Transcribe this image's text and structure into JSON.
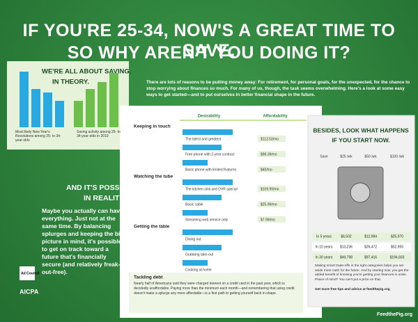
{
  "header": {
    "line1": "IF YOU'RE 25-34, NOW'S A GREAT TIME TO SAVE.",
    "line2": "SO WHY AREN'T YOU DOING IT?"
  },
  "intro": "There are lots of reasons to be putting money away: For retirement, for personal goals, for the unexpected, for the chance to stop worrying about finances so much. For many of us, though, the task seems overwhelming. Here's a look at some easy ways to get started—and to put ourselves in better financial shape in the future.",
  "saving_chart": {
    "type": "bar",
    "title": "WE'RE ALL ABOUT SAVING.",
    "subtitle": "IN THEORY.",
    "series": [
      {
        "name": "Most likely New Year's Resolutions among 25- to 34-year-olds",
        "color": "#29a9e0",
        "values": [
          80,
          55,
          50,
          38
        ]
      },
      {
        "name": "Saving activity among 25- to 34-year-olds in 2010",
        "color": "#6cbf4a",
        "values": [
          38,
          55,
          65,
          78
        ]
      }
    ]
  },
  "reality": {
    "title": "AND IT'S POSSIBLE.",
    "subtitle": "IN REALITY.",
    "text": "Maybe you actually can have everything. Just not at the same time. By balancing splurges and keeping the big picture in mind, it's possible to get on track toward a future that's financially secure (and relatively freak-out-free)."
  },
  "tradeoffs": {
    "columns": [
      "Desirability",
      "Affordability"
    ],
    "sections": [
      {
        "title": "Keeping in touch",
        "options": [
          {
            "label": "The latest and greatest",
            "desirability": 90,
            "cost": "$113.53/mo"
          },
          {
            "label": "Free phone with 2-year contract",
            "desirability": 70,
            "cost": "$98.39/mo"
          },
          {
            "label": "Basic phone with limited features",
            "desirability": 45,
            "cost": "$40/mo"
          }
        ]
      },
      {
        "title": "Watching the tube",
        "options": [
          {
            "label": "The kitchen sink and DVR special",
            "desirability": 90,
            "cost": "$109.99/mo"
          },
          {
            "label": "Basic cable",
            "desirability": 70,
            "cost": "$25.99/mo"
          },
          {
            "label": "Streaming web service only",
            "desirability": 45,
            "cost": "$7.99/mo"
          }
        ]
      },
      {
        "title": "Getting the table",
        "options": [
          {
            "label": "Dining out",
            "desirability": 90
          },
          {
            "label": "Grabbing take-out",
            "desirability": 70
          },
          {
            "label": "Cooking at home",
            "desirability": 45
          }
        ]
      }
    ],
    "debt": {
      "title": "Tackling debt",
      "text": "Nearly half of Americans said they were charged interest on a credit card in the past year, which is decidedly unaffordable. Paying more than the minimum each month—and remembering that using credit doesn't make a splurge any more affordable—is a first path to getting yourself back in shape."
    }
  },
  "savings": {
    "title": "BESIDES, LOOK WHAT HAPPENS",
    "subtitle": "IF YOU START NOW.",
    "header": [
      "Save",
      "$25 /wk",
      "$50 /wk",
      "$100 /wk"
    ],
    "rows": [
      [
        "In 5 years",
        "$6,502",
        "$12,984",
        "$25,970"
      ],
      [
        "In 10 years",
        "$13,236",
        "$26,472",
        "$52,955"
      ],
      [
        "In 30 years",
        "$49,798",
        "$97,416",
        "$194,833"
      ]
    ],
    "closing": "Making smart trade-offs in the right categories helps you set aside more cash for the future. And by starting now, you get the added benefit of knowing you're getting your finances in order. Peace of mind? You can't put a price on that.",
    "link": "Get more free tips and advice at feedthepig.org."
  },
  "logos": {
    "ad": "Ad Council",
    "aicpa": "AICPA",
    "pig": "FeedthePig.org"
  }
}
